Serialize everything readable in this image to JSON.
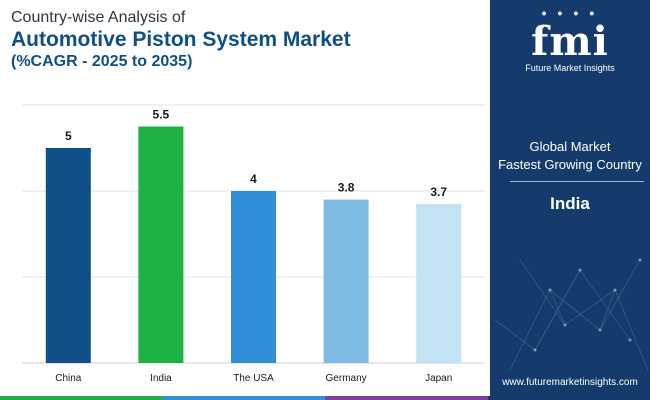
{
  "header": {
    "line1": "Country-wise Analysis of",
    "line2": "Automotive Piston System Market",
    "line3": "(%CAGR - 2025 to 2035)"
  },
  "chart_data": {
    "type": "bar",
    "categories": [
      "China",
      "India",
      "The USA",
      "Germany",
      "Japan"
    ],
    "values": [
      5,
      5.5,
      4,
      3.8,
      3.7
    ],
    "value_labels": [
      "5",
      "5.5",
      "4",
      "3.8",
      "3.7"
    ],
    "bar_colors": [
      "#0f5088",
      "#1fb043",
      "#2f8fd8",
      "#7fbce4",
      "#c3e2f3"
    ],
    "ylim": [
      0,
      6
    ],
    "grid": true,
    "title": "",
    "xlabel": "",
    "ylabel": ""
  },
  "sidebar": {
    "logo_text": "fmi",
    "logo_subtitle": "Future Market Insights",
    "label1": "Global Market",
    "label2": "Fastest Growing Country",
    "country": "India",
    "url": "www.futuremarketinsights.com",
    "background": "#143b6b"
  },
  "footer_colors": [
    "#1fb043",
    "#2f8fd8",
    "#7b3fa0",
    "#143b6b"
  ]
}
